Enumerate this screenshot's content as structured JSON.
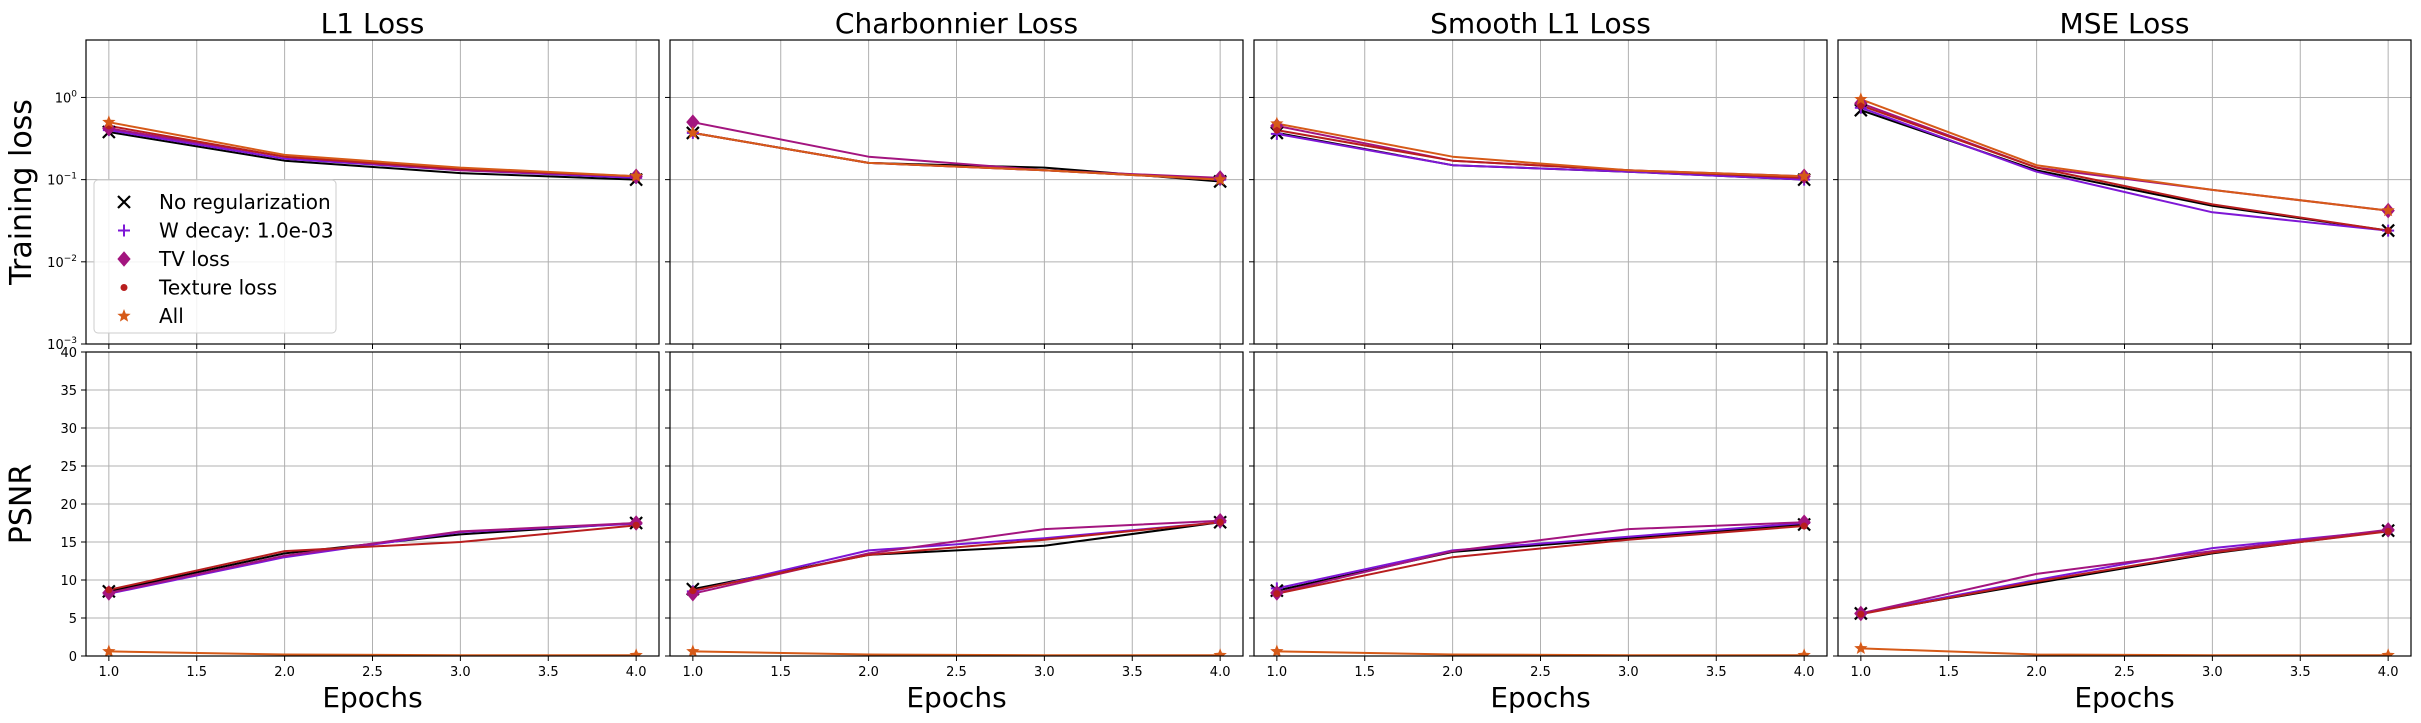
{
  "chart_data": [
    {
      "type": "line",
      "panel": "L1 Loss / Training loss",
      "title": "L1 Loss",
      "ylabel": "Training loss",
      "xlabel": "",
      "yscale": "log",
      "ylim": [
        0.001,
        5
      ],
      "xlim": [
        0.87,
        4.13
      ],
      "x": [
        1,
        2,
        3,
        4
      ],
      "series": [
        {
          "name": "No regularization",
          "values": [
            0.38,
            0.17,
            0.12,
            0.1
          ]
        },
        {
          "name": "W decay: 1.0e-03",
          "values": [
            0.4,
            0.18,
            0.13,
            0.105
          ]
        },
        {
          "name": "TV loss",
          "values": [
            0.42,
            0.19,
            0.13,
            0.11
          ]
        },
        {
          "name": "Texture loss",
          "values": [
            0.45,
            0.19,
            0.135,
            0.11
          ]
        },
        {
          "name": "All",
          "values": [
            0.5,
            0.2,
            0.14,
            0.11
          ]
        }
      ]
    },
    {
      "type": "line",
      "panel": "Charbonnier Loss / Training loss",
      "title": "Charbonnier Loss",
      "ylabel": "",
      "xlabel": "",
      "yscale": "log",
      "ylim": [
        0.001,
        5
      ],
      "xlim": [
        0.87,
        4.13
      ],
      "x": [
        1,
        2,
        3,
        4
      ],
      "series": [
        {
          "name": "No regularization",
          "values": [
            0.37,
            0.16,
            0.14,
            0.095
          ]
        },
        {
          "name": "W decay: 1.0e-03",
          "values": [
            0.37,
            0.16,
            0.13,
            0.1
          ]
        },
        {
          "name": "TV loss",
          "values": [
            0.5,
            0.19,
            0.13,
            0.105
          ]
        },
        {
          "name": "Texture loss",
          "values": [
            0.37,
            0.16,
            0.13,
            0.1
          ]
        },
        {
          "name": "All",
          "values": [
            0.37,
            0.16,
            0.13,
            0.1
          ]
        }
      ]
    },
    {
      "type": "line",
      "panel": "Smooth L1 Loss / Training loss",
      "title": "Smooth L1 Loss",
      "ylabel": "",
      "xlabel": "",
      "yscale": "log",
      "ylim": [
        0.001,
        5
      ],
      "xlim": [
        0.87,
        4.13
      ],
      "x": [
        1,
        2,
        3,
        4
      ],
      "series": [
        {
          "name": "No regularization",
          "values": [
            0.37,
            0.15,
            0.125,
            0.1
          ]
        },
        {
          "name": "W decay: 1.0e-03",
          "values": [
            0.36,
            0.15,
            0.125,
            0.1
          ]
        },
        {
          "name": "TV loss",
          "values": [
            0.45,
            0.17,
            0.13,
            0.11
          ]
        },
        {
          "name": "Texture loss",
          "values": [
            0.4,
            0.17,
            0.13,
            0.105
          ]
        },
        {
          "name": "All",
          "values": [
            0.48,
            0.19,
            0.13,
            0.11
          ]
        }
      ]
    },
    {
      "type": "line",
      "panel": "MSE Loss / Training loss",
      "title": "MSE Loss",
      "ylabel": "",
      "xlabel": "",
      "yscale": "log",
      "ylim": [
        0.001,
        5
      ],
      "xlim": [
        0.87,
        4.13
      ],
      "x": [
        1,
        2,
        3,
        4
      ],
      "series": [
        {
          "name": "No regularization",
          "values": [
            0.7,
            0.13,
            0.048,
            0.024
          ]
        },
        {
          "name": "W decay: 1.0e-03",
          "values": [
            0.75,
            0.125,
            0.04,
            0.024
          ]
        },
        {
          "name": "TV loss",
          "values": [
            0.85,
            0.14,
            0.075,
            0.042
          ]
        },
        {
          "name": "Texture loss",
          "values": [
            0.8,
            0.14,
            0.05,
            0.024
          ]
        },
        {
          "name": "All",
          "values": [
            0.95,
            0.15,
            0.075,
            0.042
          ]
        }
      ]
    },
    {
      "type": "line",
      "panel": "L1 Loss / PSNR",
      "title": "",
      "ylabel": "PSNR",
      "xlabel": "Epochs",
      "yscale": "linear",
      "ylim": [
        0,
        40
      ],
      "xlim": [
        0.87,
        4.13
      ],
      "x": [
        1,
        2,
        3,
        4
      ],
      "series": [
        {
          "name": "No regularization",
          "values": [
            8.5,
            13.5,
            16.0,
            17.5
          ]
        },
        {
          "name": "W decay: 1.0e-03",
          "values": [
            8.2,
            13.0,
            16.3,
            17.4
          ]
        },
        {
          "name": "TV loss",
          "values": [
            8.3,
            13.2,
            16.4,
            17.5
          ]
        },
        {
          "name": "Texture loss",
          "values": [
            8.7,
            13.8,
            15.0,
            17.2
          ]
        },
        {
          "name": "All",
          "values": [
            0.6,
            0.2,
            0.1,
            0.1
          ]
        }
      ]
    },
    {
      "type": "line",
      "panel": "Charbonnier Loss / PSNR",
      "title": "",
      "ylabel": "",
      "xlabel": "Epochs",
      "yscale": "linear",
      "ylim": [
        0,
        40
      ],
      "xlim": [
        0.87,
        4.13
      ],
      "x": [
        1,
        2,
        3,
        4
      ],
      "series": [
        {
          "name": "No regularization",
          "values": [
            8.8,
            13.3,
            14.5,
            17.6
          ]
        },
        {
          "name": "W decay: 1.0e-03",
          "values": [
            8.5,
            13.9,
            15.5,
            17.6
          ]
        },
        {
          "name": "TV loss",
          "values": [
            8.2,
            13.5,
            16.7,
            17.8
          ]
        },
        {
          "name": "Texture loss",
          "values": [
            8.6,
            13.3,
            15.3,
            17.6
          ]
        },
        {
          "name": "All",
          "values": [
            0.6,
            0.2,
            0.1,
            0.1
          ]
        }
      ]
    },
    {
      "type": "line",
      "panel": "Smooth L1 Loss / PSNR",
      "title": "",
      "ylabel": "",
      "xlabel": "Epochs",
      "yscale": "linear",
      "ylim": [
        0,
        40
      ],
      "xlim": [
        0.87,
        4.13
      ],
      "x": [
        1,
        2,
        3,
        4
      ],
      "series": [
        {
          "name": "No regularization",
          "values": [
            8.6,
            13.7,
            15.5,
            17.3
          ]
        },
        {
          "name": "W decay: 1.0e-03",
          "values": [
            8.9,
            13.9,
            15.7,
            17.5
          ]
        },
        {
          "name": "TV loss",
          "values": [
            8.3,
            13.8,
            16.7,
            17.6
          ]
        },
        {
          "name": "Texture loss",
          "values": [
            8.2,
            13.0,
            15.3,
            17.1
          ]
        },
        {
          "name": "All",
          "values": [
            0.6,
            0.2,
            0.1,
            0.1
          ]
        }
      ]
    },
    {
      "type": "line",
      "panel": "MSE Loss / PSNR",
      "title": "",
      "ylabel": "",
      "xlabel": "Epochs",
      "yscale": "linear",
      "ylim": [
        0,
        40
      ],
      "xlim": [
        0.87,
        4.13
      ],
      "x": [
        1,
        2,
        3,
        4
      ],
      "series": [
        {
          "name": "No regularization",
          "values": [
            5.6,
            9.6,
            13.5,
            16.5
          ]
        },
        {
          "name": "W decay: 1.0e-03",
          "values": [
            5.6,
            10.0,
            14.2,
            16.5
          ]
        },
        {
          "name": "TV loss",
          "values": [
            5.6,
            10.8,
            13.8,
            16.6
          ]
        },
        {
          "name": "Texture loss",
          "values": [
            5.5,
            9.8,
            13.6,
            16.4
          ]
        },
        {
          "name": "All",
          "values": [
            1.0,
            0.2,
            0.1,
            0.1
          ]
        }
      ]
    }
  ],
  "legend": {
    "placement": "lower-left of first panel",
    "entries": [
      {
        "name": "No regularization",
        "marker": "x",
        "color": "#000000"
      },
      {
        "name": "W decay: 1.0e-03",
        "marker": "plus",
        "color": "#7e17d6"
      },
      {
        "name": "TV loss",
        "marker": "diamond",
        "color": "#a3157f"
      },
      {
        "name": "Texture loss",
        "marker": "dot",
        "color": "#b81e1e"
      },
      {
        "name": "All",
        "marker": "star",
        "color": "#d65a18"
      }
    ]
  },
  "axes": {
    "x_ticks": [
      "1.0",
      "1.5",
      "2.0",
      "2.5",
      "3.0",
      "3.5",
      "4.0"
    ],
    "log_ticks": [
      {
        "base": "10",
        "exp": "0",
        "value": 1
      },
      {
        "base": "10",
        "exp": "−1",
        "value": 0.1
      },
      {
        "base": "10",
        "exp": "−2",
        "value": 0.01
      },
      {
        "base": "10",
        "exp": "−3",
        "value": 0.001
      }
    ],
    "psnr_ticks": [
      "0",
      "5",
      "10",
      "15",
      "20",
      "25",
      "30",
      "35",
      "40"
    ],
    "grid": true
  }
}
